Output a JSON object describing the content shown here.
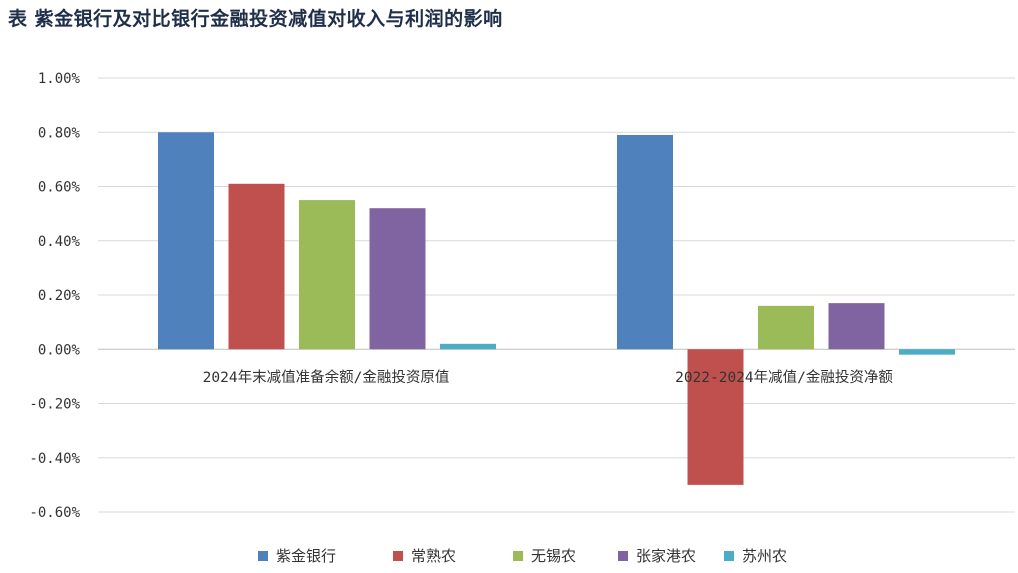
{
  "title": "表 紫金银行及对比银行金融投资减值对收入与利润的影响",
  "chart_data": {
    "type": "bar",
    "categories": [
      "2024年末减值准备余额/金融投资原值",
      "2022-2024年减值/金融投资净额"
    ],
    "series": [
      {
        "name": "紫金银行",
        "color": "#4f81bd",
        "values": [
          0.8,
          0.79
        ]
      },
      {
        "name": "常熟农",
        "color": "#c0504d",
        "values": [
          0.61,
          -0.5
        ]
      },
      {
        "name": "无锡农",
        "color": "#9bbb59",
        "values": [
          0.55,
          0.16
        ]
      },
      {
        "name": "张家港农",
        "color": "#8064a2",
        "values": [
          0.52,
          0.17
        ]
      },
      {
        "name": "苏州农",
        "color": "#4bacc6",
        "values": [
          0.02,
          -0.02
        ]
      }
    ],
    "yticks": [
      "1.00%",
      "0.80%",
      "0.60%",
      "0.40%",
      "0.20%",
      "0.00%",
      "-0.20%",
      "-0.40%",
      "-0.60%"
    ],
    "ylim": [
      -0.6,
      1.0
    ],
    "unit": "%",
    "grid": true,
    "legend": "bottom"
  }
}
